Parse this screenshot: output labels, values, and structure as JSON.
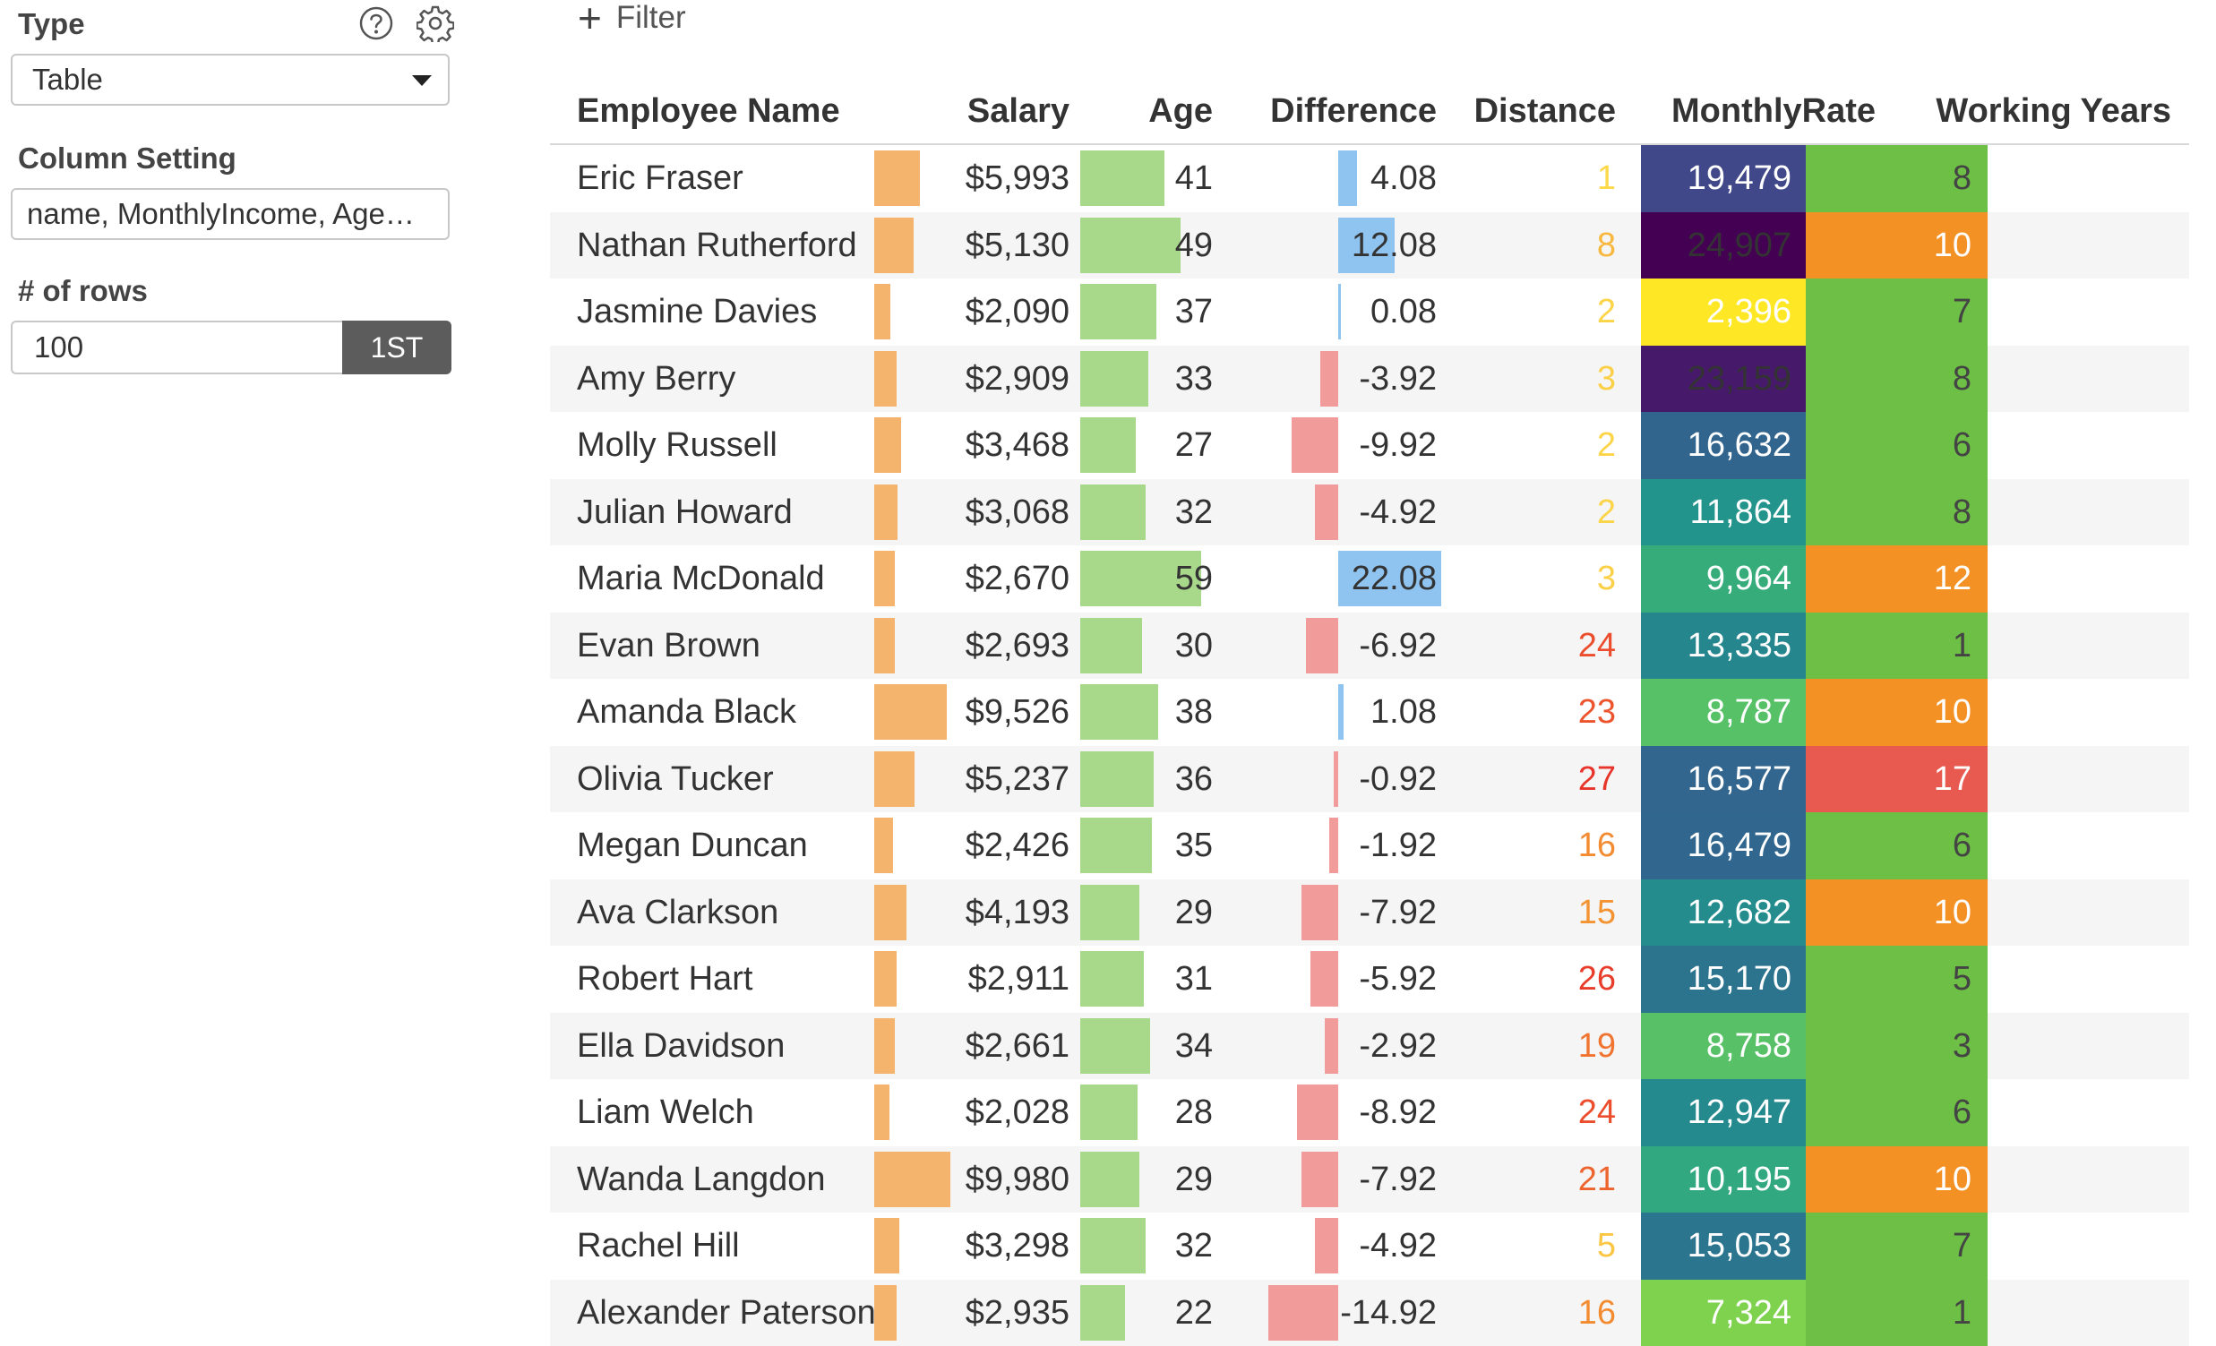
{
  "panel": {
    "type_label": "Type",
    "type_value": "Table",
    "help_icon": "question-circle-icon",
    "settings_icon": "gear-icon",
    "column_setting_label": "Column Setting",
    "column_setting_value": "name, MonthlyIncome, Age…",
    "rows_label": "# of rows",
    "rows_value": "100",
    "rows_button": "1ST"
  },
  "filter": {
    "label": "Filter",
    "icon": "plus-icon"
  },
  "table": {
    "headers": [
      "Employee Name",
      "Salary",
      "Age",
      "Difference",
      "Distance",
      "MonthlyRate",
      "Working Years"
    ],
    "colors": {
      "salary_bar": "#f5b46e",
      "age_bar": "#a8d88a",
      "diff_pos": "#8fc3f0",
      "diff_neg": "#f29b9b",
      "viridis": [
        "#440154",
        "#482777",
        "#3f4a8a",
        "#31678e",
        "#26838f",
        "#1f9d8a",
        "#6cce5a",
        "#b6de2b",
        "#fee825"
      ],
      "distance_scale": [
        "#fcd94a",
        "#f59b32",
        "#e8352b"
      ],
      "working_years_scale": [
        "#6dbf45",
        "#f49125",
        "#e85a50"
      ]
    },
    "rows": [
      {
        "name": "Eric Fraser",
        "salary": "$5,993",
        "salary_value": 5993,
        "age": 41,
        "difference": "4.08",
        "difference_value": 4.08,
        "distance": 1,
        "monthly_rate": "19,479",
        "monthly_rate_value": 19479,
        "working_years": 8
      },
      {
        "name": "Nathan Rutherford",
        "salary": "$5,130",
        "salary_value": 5130,
        "age": 49,
        "difference": "12.08",
        "difference_value": 12.08,
        "distance": 8,
        "monthly_rate": "24,907",
        "monthly_rate_value": 24907,
        "working_years": 10
      },
      {
        "name": "Jasmine Davies",
        "salary": "$2,090",
        "salary_value": 2090,
        "age": 37,
        "difference": "0.08",
        "difference_value": 0.08,
        "distance": 2,
        "monthly_rate": "2,396",
        "monthly_rate_value": 2396,
        "working_years": 7
      },
      {
        "name": "Amy Berry",
        "salary": "$2,909",
        "salary_value": 2909,
        "age": 33,
        "difference": "-3.92",
        "difference_value": -3.92,
        "distance": 3,
        "monthly_rate": "23,159",
        "monthly_rate_value": 23159,
        "working_years": 8
      },
      {
        "name": "Molly Russell",
        "salary": "$3,468",
        "salary_value": 3468,
        "age": 27,
        "difference": "-9.92",
        "difference_value": -9.92,
        "distance": 2,
        "monthly_rate": "16,632",
        "monthly_rate_value": 16632,
        "working_years": 6
      },
      {
        "name": "Julian Howard",
        "salary": "$3,068",
        "salary_value": 3068,
        "age": 32,
        "difference": "-4.92",
        "difference_value": -4.92,
        "distance": 2,
        "monthly_rate": "11,864",
        "monthly_rate_value": 11864,
        "working_years": 8
      },
      {
        "name": "Maria McDonald",
        "salary": "$2,670",
        "salary_value": 2670,
        "age": 59,
        "difference": "22.08",
        "difference_value": 22.08,
        "distance": 3,
        "monthly_rate": "9,964",
        "monthly_rate_value": 9964,
        "working_years": 12
      },
      {
        "name": "Evan Brown",
        "salary": "$2,693",
        "salary_value": 2693,
        "age": 30,
        "difference": "-6.92",
        "difference_value": -6.92,
        "distance": 24,
        "monthly_rate": "13,335",
        "monthly_rate_value": 13335,
        "working_years": 1
      },
      {
        "name": "Amanda Black",
        "salary": "$9,526",
        "salary_value": 9526,
        "age": 38,
        "difference": "1.08",
        "difference_value": 1.08,
        "distance": 23,
        "monthly_rate": "8,787",
        "monthly_rate_value": 8787,
        "working_years": 10
      },
      {
        "name": "Olivia Tucker",
        "salary": "$5,237",
        "salary_value": 5237,
        "age": 36,
        "difference": "-0.92",
        "difference_value": -0.92,
        "distance": 27,
        "monthly_rate": "16,577",
        "monthly_rate_value": 16577,
        "working_years": 17
      },
      {
        "name": "Megan Duncan",
        "salary": "$2,426",
        "salary_value": 2426,
        "age": 35,
        "difference": "-1.92",
        "difference_value": -1.92,
        "distance": 16,
        "monthly_rate": "16,479",
        "monthly_rate_value": 16479,
        "working_years": 6
      },
      {
        "name": "Ava Clarkson",
        "salary": "$4,193",
        "salary_value": 4193,
        "age": 29,
        "difference": "-7.92",
        "difference_value": -7.92,
        "distance": 15,
        "monthly_rate": "12,682",
        "monthly_rate_value": 12682,
        "working_years": 10
      },
      {
        "name": "Robert Hart",
        "salary": "$2,911",
        "salary_value": 2911,
        "age": 31,
        "difference": "-5.92",
        "difference_value": -5.92,
        "distance": 26,
        "monthly_rate": "15,170",
        "monthly_rate_value": 15170,
        "working_years": 5
      },
      {
        "name": "Ella Davidson",
        "salary": "$2,661",
        "salary_value": 2661,
        "age": 34,
        "difference": "-2.92",
        "difference_value": -2.92,
        "distance": 19,
        "monthly_rate": "8,758",
        "monthly_rate_value": 8758,
        "working_years": 3
      },
      {
        "name": "Liam Welch",
        "salary": "$2,028",
        "salary_value": 2028,
        "age": 28,
        "difference": "-8.92",
        "difference_value": -8.92,
        "distance": 24,
        "monthly_rate": "12,947",
        "monthly_rate_value": 12947,
        "working_years": 6
      },
      {
        "name": "Wanda Langdon",
        "salary": "$9,980",
        "salary_value": 9980,
        "age": 29,
        "difference": "-7.92",
        "difference_value": -7.92,
        "distance": 21,
        "monthly_rate": "10,195",
        "monthly_rate_value": 10195,
        "working_years": 10
      },
      {
        "name": "Rachel Hill",
        "salary": "$3,298",
        "salary_value": 3298,
        "age": 32,
        "difference": "-4.92",
        "difference_value": -4.92,
        "distance": 5,
        "monthly_rate": "15,053",
        "monthly_rate_value": 15053,
        "working_years": 7
      },
      {
        "name": "Alexander Paterson",
        "salary": "$2,935",
        "salary_value": 2935,
        "age": 22,
        "difference": "-14.92",
        "difference_value": -14.92,
        "distance": 16,
        "monthly_rate": "7,324",
        "monthly_rate_value": 7324,
        "working_years": 1
      }
    ]
  }
}
